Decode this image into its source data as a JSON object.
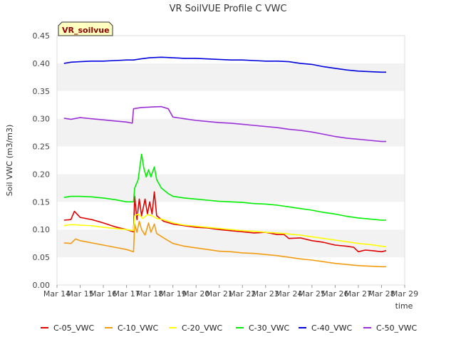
{
  "chart_data": {
    "type": "line",
    "title": "VR SoilVUE Profile C VWC",
    "xlabel": "time",
    "ylabel": "Soil VWC (m3/m3)",
    "badge": "VR_soilvue",
    "xlim": [
      14,
      29
    ],
    "ylim": [
      0.0,
      0.45
    ],
    "x_tick_labels": [
      "Mar 14",
      "Mar 15",
      "Mar 16",
      "Mar 17",
      "Mar 18",
      "Mar 19",
      "Mar 20",
      "Mar 21",
      "Mar 22",
      "Mar 23",
      "Mar 24",
      "Mar 25",
      "Mar 26",
      "Mar 27",
      "Mar 28",
      "Mar 29"
    ],
    "y_tick_labels": [
      "0.00",
      "0.05",
      "0.10",
      "0.15",
      "0.20",
      "0.25",
      "0.30",
      "0.35",
      "0.40",
      "0.45"
    ],
    "grid": "alternating horizontal bands",
    "legend_position": "bottom",
    "series": [
      {
        "name": "C-05_VWC",
        "color": "#e00000",
        "points": [
          [
            14.3,
            0.117
          ],
          [
            14.6,
            0.118
          ],
          [
            14.75,
            0.133
          ],
          [
            15.0,
            0.122
          ],
          [
            15.5,
            0.118
          ],
          [
            16.0,
            0.112
          ],
          [
            16.5,
            0.105
          ],
          [
            17.0,
            0.1
          ],
          [
            17.3,
            0.096
          ],
          [
            17.35,
            0.16
          ],
          [
            17.45,
            0.118
          ],
          [
            17.55,
            0.155
          ],
          [
            17.65,
            0.125
          ],
          [
            17.8,
            0.155
          ],
          [
            17.9,
            0.128
          ],
          [
            18.0,
            0.15
          ],
          [
            18.1,
            0.128
          ],
          [
            18.2,
            0.168
          ],
          [
            18.3,
            0.125
          ],
          [
            18.6,
            0.115
          ],
          [
            19.0,
            0.11
          ],
          [
            19.5,
            0.107
          ],
          [
            20.0,
            0.104
          ],
          [
            20.5,
            0.103
          ],
          [
            21.0,
            0.1
          ],
          [
            21.5,
            0.098
          ],
          [
            22.0,
            0.096
          ],
          [
            22.5,
            0.094
          ],
          [
            23.0,
            0.095
          ],
          [
            23.5,
            0.091
          ],
          [
            23.8,
            0.091
          ],
          [
            24.0,
            0.084
          ],
          [
            24.5,
            0.085
          ],
          [
            25.0,
            0.08
          ],
          [
            25.5,
            0.077
          ],
          [
            26.0,
            0.072
          ],
          [
            26.5,
            0.07
          ],
          [
            26.8,
            0.068
          ],
          [
            27.0,
            0.06
          ],
          [
            27.3,
            0.063
          ],
          [
            27.6,
            0.062
          ],
          [
            28.0,
            0.06
          ],
          [
            28.2,
            0.062
          ]
        ]
      },
      {
        "name": "C-10_VWC",
        "color": "#f39c12",
        "points": [
          [
            14.3,
            0.076
          ],
          [
            14.6,
            0.075
          ],
          [
            14.8,
            0.083
          ],
          [
            15.0,
            0.08
          ],
          [
            15.5,
            0.076
          ],
          [
            16.0,
            0.072
          ],
          [
            16.5,
            0.068
          ],
          [
            17.0,
            0.064
          ],
          [
            17.3,
            0.06
          ],
          [
            17.35,
            0.11
          ],
          [
            17.45,
            0.095
          ],
          [
            17.55,
            0.115
          ],
          [
            17.65,
            0.1
          ],
          [
            17.8,
            0.09
          ],
          [
            17.95,
            0.112
          ],
          [
            18.05,
            0.095
          ],
          [
            18.2,
            0.11
          ],
          [
            18.3,
            0.093
          ],
          [
            18.6,
            0.085
          ],
          [
            19.0,
            0.075
          ],
          [
            19.5,
            0.07
          ],
          [
            20.0,
            0.067
          ],
          [
            20.5,
            0.064
          ],
          [
            21.0,
            0.061
          ],
          [
            21.5,
            0.06
          ],
          [
            22.0,
            0.058
          ],
          [
            22.5,
            0.057
          ],
          [
            23.0,
            0.055
          ],
          [
            23.5,
            0.053
          ],
          [
            24.0,
            0.05
          ],
          [
            24.5,
            0.047
          ],
          [
            25.0,
            0.045
          ],
          [
            25.5,
            0.042
          ],
          [
            26.0,
            0.039
          ],
          [
            26.5,
            0.037
          ],
          [
            27.0,
            0.035
          ],
          [
            27.5,
            0.034
          ],
          [
            28.0,
            0.033
          ],
          [
            28.2,
            0.033
          ]
        ]
      },
      {
        "name": "C-20_VWC",
        "color": "#ffff00",
        "points": [
          [
            14.3,
            0.107
          ],
          [
            14.6,
            0.109
          ],
          [
            15.0,
            0.108
          ],
          [
            15.5,
            0.107
          ],
          [
            16.0,
            0.104
          ],
          [
            16.5,
            0.102
          ],
          [
            17.0,
            0.1
          ],
          [
            17.3,
            0.098
          ],
          [
            17.35,
            0.125
          ],
          [
            17.5,
            0.128
          ],
          [
            17.7,
            0.12
          ],
          [
            17.9,
            0.127
          ],
          [
            18.1,
            0.125
          ],
          [
            18.3,
            0.12
          ],
          [
            18.6,
            0.118
          ],
          [
            19.0,
            0.112
          ],
          [
            19.5,
            0.108
          ],
          [
            20.0,
            0.106
          ],
          [
            20.5,
            0.104
          ],
          [
            21.0,
            0.102
          ],
          [
            21.5,
            0.1
          ],
          [
            22.0,
            0.098
          ],
          [
            22.5,
            0.097
          ],
          [
            23.0,
            0.095
          ],
          [
            23.5,
            0.094
          ],
          [
            24.0,
            0.092
          ],
          [
            24.5,
            0.09
          ],
          [
            25.0,
            0.087
          ],
          [
            25.5,
            0.084
          ],
          [
            26.0,
            0.081
          ],
          [
            26.5,
            0.078
          ],
          [
            27.0,
            0.075
          ],
          [
            27.5,
            0.073
          ],
          [
            28.0,
            0.07
          ],
          [
            28.2,
            0.069
          ]
        ]
      },
      {
        "name": "C-30_VWC",
        "color": "#00ee00",
        "points": [
          [
            14.3,
            0.158
          ],
          [
            14.6,
            0.16
          ],
          [
            15.0,
            0.16
          ],
          [
            15.5,
            0.159
          ],
          [
            16.0,
            0.157
          ],
          [
            16.5,
            0.154
          ],
          [
            17.0,
            0.15
          ],
          [
            17.3,
            0.15
          ],
          [
            17.35,
            0.175
          ],
          [
            17.5,
            0.19
          ],
          [
            17.65,
            0.236
          ],
          [
            17.75,
            0.21
          ],
          [
            17.85,
            0.195
          ],
          [
            17.95,
            0.208
          ],
          [
            18.05,
            0.195
          ],
          [
            18.2,
            0.213
          ],
          [
            18.3,
            0.19
          ],
          [
            18.5,
            0.175
          ],
          [
            18.8,
            0.165
          ],
          [
            19.0,
            0.16
          ],
          [
            19.5,
            0.157
          ],
          [
            20.0,
            0.155
          ],
          [
            20.5,
            0.153
          ],
          [
            21.0,
            0.151
          ],
          [
            21.5,
            0.15
          ],
          [
            22.0,
            0.149
          ],
          [
            22.5,
            0.147
          ],
          [
            23.0,
            0.146
          ],
          [
            23.5,
            0.144
          ],
          [
            24.0,
            0.141
          ],
          [
            24.5,
            0.138
          ],
          [
            25.0,
            0.135
          ],
          [
            25.5,
            0.131
          ],
          [
            26.0,
            0.128
          ],
          [
            26.5,
            0.124
          ],
          [
            27.0,
            0.121
          ],
          [
            27.5,
            0.119
          ],
          [
            28.0,
            0.117
          ],
          [
            28.2,
            0.117
          ]
        ]
      },
      {
        "name": "C-40_VWC",
        "color": "#0000dd",
        "points": [
          [
            14.3,
            0.4
          ],
          [
            14.6,
            0.402
          ],
          [
            15.0,
            0.403
          ],
          [
            15.5,
            0.404
          ],
          [
            16.0,
            0.404
          ],
          [
            16.5,
            0.405
          ],
          [
            17.0,
            0.406
          ],
          [
            17.3,
            0.406
          ],
          [
            17.6,
            0.408
          ],
          [
            18.0,
            0.41
          ],
          [
            18.5,
            0.411
          ],
          [
            19.0,
            0.41
          ],
          [
            19.5,
            0.409
          ],
          [
            20.0,
            0.409
          ],
          [
            20.5,
            0.408
          ],
          [
            21.0,
            0.407
          ],
          [
            21.5,
            0.406
          ],
          [
            22.0,
            0.406
          ],
          [
            22.5,
            0.405
          ],
          [
            23.0,
            0.404
          ],
          [
            23.5,
            0.404
          ],
          [
            24.0,
            0.403
          ],
          [
            24.5,
            0.4
          ],
          [
            25.0,
            0.398
          ],
          [
            25.5,
            0.394
          ],
          [
            26.0,
            0.391
          ],
          [
            26.5,
            0.388
          ],
          [
            27.0,
            0.386
          ],
          [
            27.5,
            0.385
          ],
          [
            28.0,
            0.384
          ],
          [
            28.2,
            0.384
          ]
        ]
      },
      {
        "name": "C-50_VWC",
        "color": "#9b30d9",
        "points": [
          [
            14.3,
            0.301
          ],
          [
            14.6,
            0.299
          ],
          [
            15.0,
            0.302
          ],
          [
            15.5,
            0.3
          ],
          [
            16.0,
            0.298
          ],
          [
            16.5,
            0.296
          ],
          [
            17.0,
            0.294
          ],
          [
            17.25,
            0.292
          ],
          [
            17.3,
            0.318
          ],
          [
            17.6,
            0.32
          ],
          [
            18.0,
            0.321
          ],
          [
            18.5,
            0.322
          ],
          [
            18.8,
            0.318
          ],
          [
            19.0,
            0.303
          ],
          [
            19.5,
            0.3
          ],
          [
            20.0,
            0.297
          ],
          [
            20.5,
            0.295
          ],
          [
            21.0,
            0.293
          ],
          [
            21.5,
            0.292
          ],
          [
            22.0,
            0.29
          ],
          [
            22.5,
            0.288
          ],
          [
            23.0,
            0.286
          ],
          [
            23.5,
            0.284
          ],
          [
            24.0,
            0.281
          ],
          [
            24.5,
            0.279
          ],
          [
            25.0,
            0.276
          ],
          [
            25.5,
            0.272
          ],
          [
            26.0,
            0.268
          ],
          [
            26.5,
            0.265
          ],
          [
            27.0,
            0.263
          ],
          [
            27.5,
            0.261
          ],
          [
            28.0,
            0.259
          ],
          [
            28.2,
            0.259
          ]
        ]
      }
    ]
  }
}
